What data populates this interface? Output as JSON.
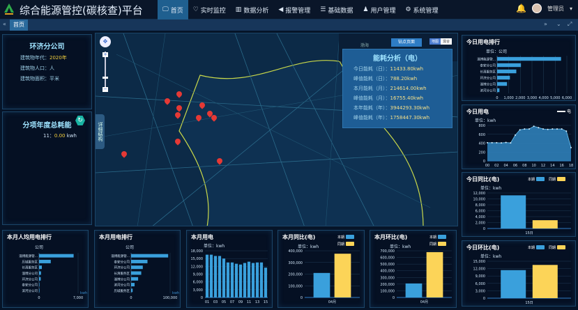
{
  "header": {
    "title": "综合能源管控(碳核查)平台",
    "nav": [
      {
        "icon": "monitor-icon",
        "label": "首页"
      },
      {
        "icon": "heart-pulse-icon",
        "label": "实时监控"
      },
      {
        "icon": "bar-chart-icon",
        "label": "数据分析"
      },
      {
        "icon": "megaphone-icon",
        "label": "报警管理"
      },
      {
        "icon": "database-icon",
        "label": "基础数据"
      },
      {
        "icon": "user-icon",
        "label": "用户管理"
      },
      {
        "icon": "gears-icon",
        "label": "系统管理"
      }
    ],
    "user": "管理员"
  },
  "tabs": {
    "active": "首页"
  },
  "company": {
    "name": "环济分公司",
    "year_label": "建筑物年代：",
    "year": "2020年",
    "population_label": "建筑物人口：人",
    "area_label": "建筑物面积：平米"
  },
  "subitem": {
    "title": "分项年度总耗能",
    "label": "11：",
    "value": "0.00",
    "unit": "kwh"
  },
  "map": {
    "side_tab": "详细结构",
    "drill_button": "钻点页面",
    "modes": [
      "地图",
      "混合"
    ],
    "sea_label": "渤海",
    "pins": 11
  },
  "energy": {
    "title": "能耗分析（电）",
    "rows": [
      {
        "label": "今日能耗（日）：",
        "value": "11433.80kwh"
      },
      {
        "label": "峰值能耗（日）：",
        "value": "788.20kwh"
      },
      {
        "label": "本月能耗（月）：",
        "value": "214614.00kwh"
      },
      {
        "label": "峰值能耗（月）：",
        "value": "16755.40kwh"
      },
      {
        "label": "本年能耗（年）：",
        "value": "3944293.30kwh"
      },
      {
        "label": "峰值能耗（年）：",
        "value": "1758447.30kwh"
      }
    ]
  },
  "colors": {
    "current": "#3aa0dc",
    "same_period": "#fcd458"
  },
  "charts": {
    "today_rank": {
      "title": "今日用电排行",
      "unit": "单位：公司",
      "type": "hbar",
      "categories": [
        "淄博能源管...",
        "泰安分公司",
        "长清服务区",
        "环济分公司",
        "淄博分公司",
        "滨河分公司"
      ],
      "values": [
        5500,
        2050,
        1650,
        1100,
        850,
        200
      ],
      "xlim": [
        0,
        6000
      ],
      "ticks": [
        0,
        1000,
        2000,
        3000,
        4000,
        5000,
        6000
      ]
    },
    "today_line": {
      "title": "今日用电",
      "unit": "单位：kwh",
      "legend": "电",
      "type": "area",
      "x": [
        "00",
        "01",
        "02",
        "03",
        "04",
        "05",
        "06",
        "07",
        "08",
        "09",
        "10",
        "11",
        "12",
        "13",
        "14",
        "15",
        "16",
        "17",
        "18"
      ],
      "values": [
        410,
        410,
        410,
        405,
        415,
        405,
        580,
        700,
        720,
        720,
        780,
        750,
        720,
        710,
        720,
        720,
        720,
        670,
        300
      ],
      "ylim": [
        0,
        800
      ],
      "ticks": [
        0,
        200,
        400,
        600,
        800
      ],
      "xticks": [
        "00",
        "02",
        "04",
        "06",
        "08",
        "10",
        "12",
        "14",
        "16",
        "18"
      ]
    },
    "today_yoy": {
      "title": "今日同比(电)",
      "unit": "单位：kwh",
      "type": "group",
      "legend": [
        "本期",
        "同期"
      ],
      "categories": [
        "15日"
      ],
      "series": [
        {
          "name": "本期",
          "values": [
            11200
          ]
        },
        {
          "name": "同期",
          "values": [
            2800
          ]
        }
      ],
      "ylim": [
        0,
        12000
      ],
      "ticks": [
        0,
        2000,
        4000,
        6000,
        8000,
        10000,
        12000
      ]
    },
    "today_mom": {
      "title": "今日环比(电)",
      "unit": "单位：kwh",
      "type": "group",
      "legend": [
        "本期",
        "同期"
      ],
      "categories": [
        "15日"
      ],
      "series": [
        {
          "name": "本期",
          "values": [
            11400
          ]
        },
        {
          "name": "同期",
          "values": [
            13500
          ]
        }
      ],
      "ylim": [
        0,
        15000
      ],
      "ticks": [
        0,
        3000,
        6000,
        9000,
        12000,
        15000
      ]
    },
    "month_per_capita": {
      "title": "本月人均用电排行",
      "unit": "公司",
      "axis_unit": "kwh",
      "type": "hbar",
      "categories": [
        "淄博能源管...",
        "历城服务区",
        "长清服务区",
        "淄博分公司",
        "环济分公司",
        "泰安分公司",
        "滨河分公司"
      ],
      "values": [
        6200,
        2100,
        500,
        350,
        300,
        80,
        80
      ],
      "xlim": [
        0,
        7000
      ],
      "ticks": [
        0,
        7000
      ]
    },
    "month_rank": {
      "title": "本月用电排行",
      "unit": "公司",
      "axis_unit": "kwh",
      "type": "hbar",
      "categories": [
        "淄博能源管...",
        "泰安分公司",
        "环济分公司",
        "长清服务区",
        "淄博分公司",
        "滨河分公司",
        "历城服务区"
      ],
      "values": [
        95000,
        42000,
        30000,
        26000,
        18000,
        9000,
        4000
      ],
      "xlim": [
        0,
        100000
      ],
      "ticks": [
        0,
        100000
      ]
    },
    "month_use": {
      "title": "本月用电",
      "unit": "单位：kwh",
      "type": "vbar",
      "x": [
        "01",
        "02",
        "03",
        "04",
        "05",
        "06",
        "07",
        "08",
        "09",
        "10",
        "11",
        "12",
        "13",
        "14",
        "15"
      ],
      "values": [
        16500,
        16500,
        16000,
        16000,
        15000,
        13500,
        13500,
        13000,
        12700,
        13300,
        13800,
        13300,
        13500,
        13500,
        11500
      ],
      "ylim": [
        0,
        18000
      ],
      "ticks": [
        0,
        3000,
        6000,
        9000,
        12000,
        15000,
        18000
      ],
      "xticks": [
        "01",
        "03",
        "05",
        "07",
        "09",
        "11",
        "13",
        "15"
      ]
    },
    "month_yoy": {
      "title": "本月同比(电)",
      "unit": "单位：kwh",
      "type": "group",
      "legend": [
        "本期",
        "同期"
      ],
      "categories": [
        "04月"
      ],
      "series": [
        {
          "name": "本期",
          "values": [
            210000
          ]
        },
        {
          "name": "同期",
          "values": [
            375000
          ]
        }
      ],
      "ylim": [
        0,
        400000
      ],
      "ticks": [
        0,
        100000,
        200000,
        300000,
        400000
      ]
    },
    "month_mom": {
      "title": "本月环比(电)",
      "unit": "单位：kwh",
      "type": "group",
      "legend": [
        "本期",
        "同期"
      ],
      "categories": [
        "04月"
      ],
      "series": [
        {
          "name": "本期",
          "values": [
            210000
          ]
        },
        {
          "name": "同期",
          "values": [
            680000
          ]
        }
      ],
      "ylim": [
        0,
        700000
      ],
      "ticks": [
        0,
        100000,
        200000,
        300000,
        400000,
        500000,
        600000,
        700000
      ]
    }
  }
}
